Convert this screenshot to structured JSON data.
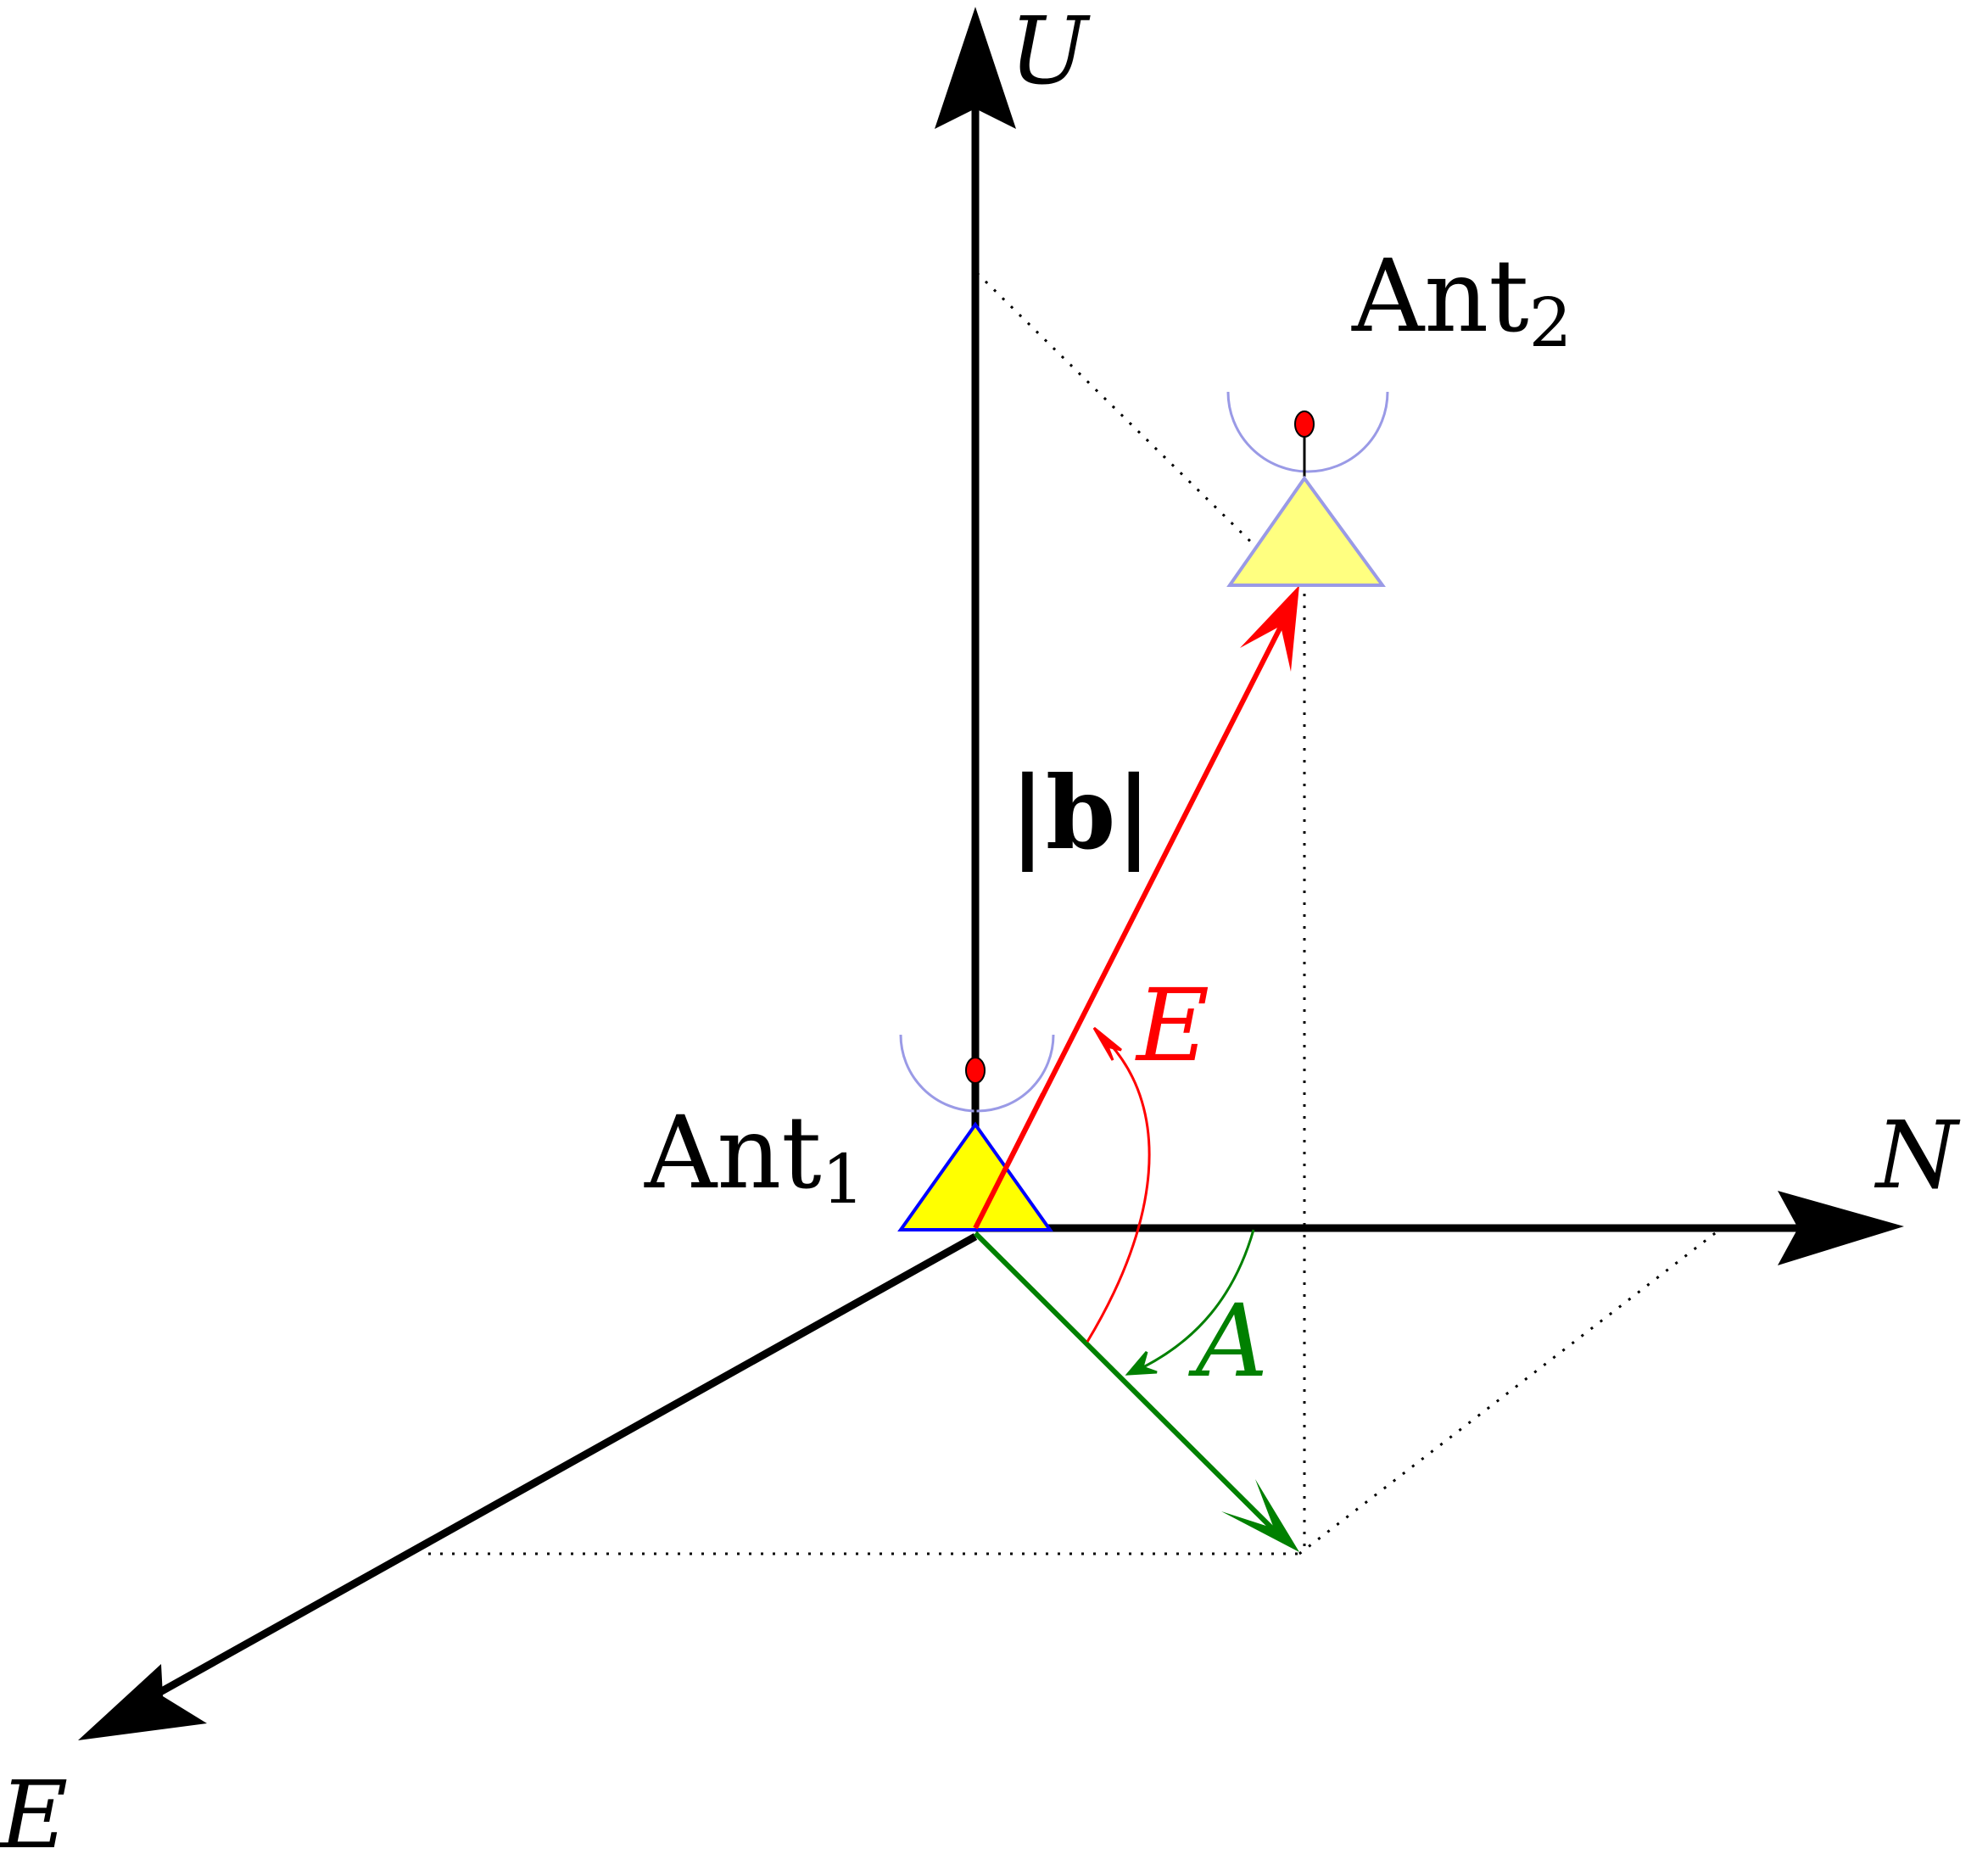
{
  "axes": {
    "up": "U",
    "north": "N",
    "east": "E"
  },
  "antennas": {
    "ant1": {
      "name": "Ant",
      "sub": "1"
    },
    "ant2": {
      "name": "Ant",
      "sub": "2"
    }
  },
  "labels": {
    "baseline": "|b|",
    "elevation": "E",
    "azimuth": "A"
  },
  "colors": {
    "axis": "#000000",
    "baseline": "#ff0000",
    "elevation_arc": "#ff0000",
    "horizontal_projection": "#008000",
    "azimuth_arc": "#008000",
    "antenna_fill": "#ffff00",
    "antenna_stroke_1": "#0000ff",
    "antenna_stroke_2": "#9a9ae6",
    "antenna_tip": "#ff0000"
  }
}
